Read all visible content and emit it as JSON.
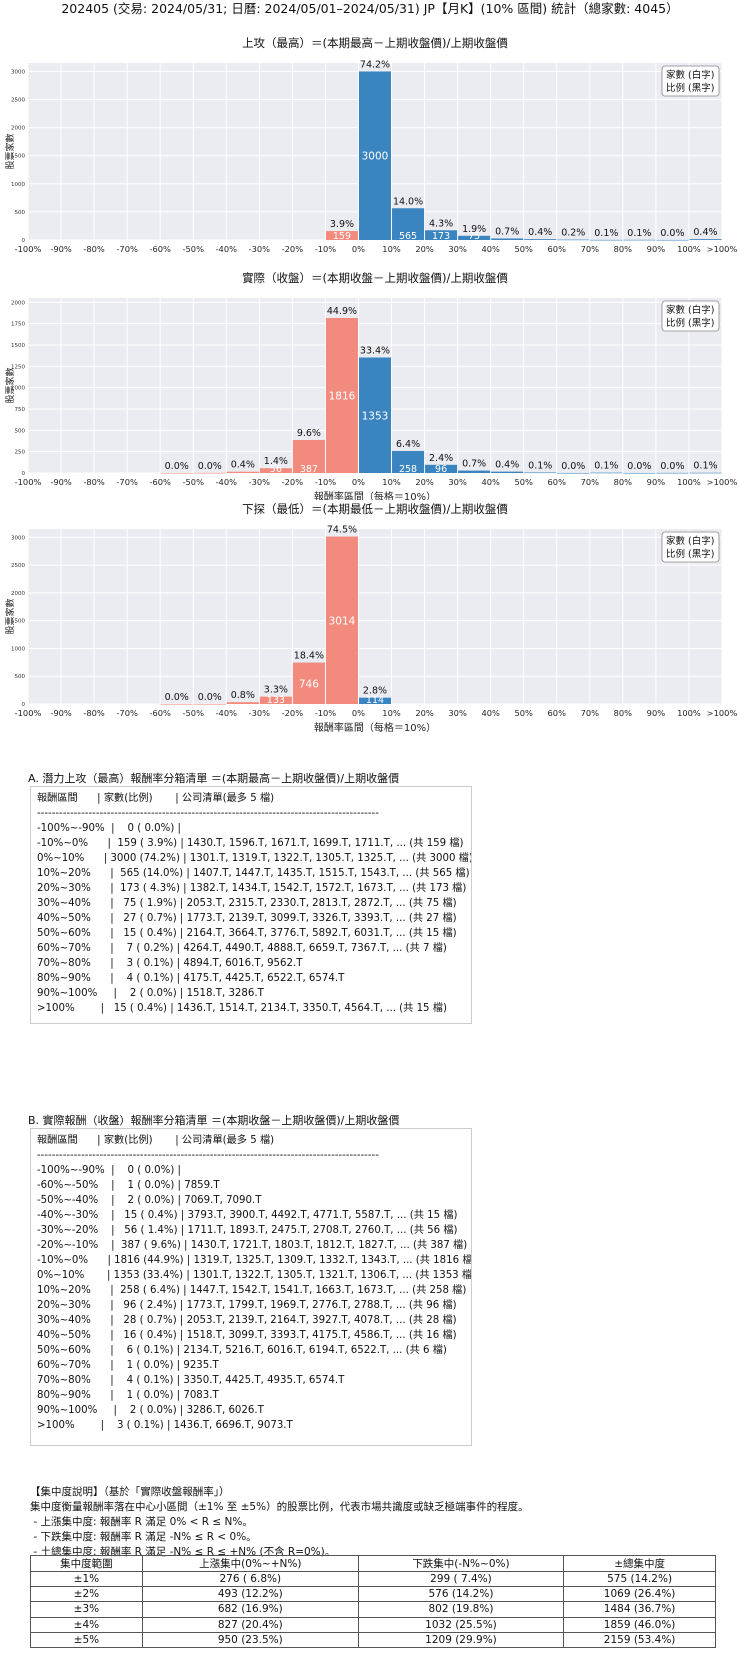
{
  "header": "202405 (交易: 2024/05/31; 日曆: 2024/05/01–2024/05/31) JP【月K】(10% 區間) 統計（總家數: 4045）",
  "legend": [
    "家數 (白字)",
    "比例 (黑字)"
  ],
  "x_tick_labels": [
    "-100%",
    "-90%",
    "-80%",
    "-70%",
    "-60%",
    "-50%",
    "-40%",
    "-30%",
    "-20%",
    "-10%",
    "0%",
    "10%",
    "20%",
    "30%",
    "40%",
    "50%",
    "60%",
    "70%",
    "80%",
    "90%",
    "100%",
    ">100%"
  ],
  "ylabel": "股票家數",
  "xlabel": "報酬率區間（每格＝10%）",
  "chart_data": [
    {
      "type": "bar",
      "title": "上攻（最高）＝(本期最高－上期收盤價)/上期收盤價",
      "ylim": [
        0,
        3150
      ],
      "yticks": [
        0,
        500,
        1000,
        1500,
        2000,
        2500,
        3000
      ],
      "bars": [
        {
          "bin": 9,
          "count": 159,
          "pct": "3.9%",
          "color": "#f28b7d"
        },
        {
          "bin": 10,
          "count": 3000,
          "pct": "74.2%",
          "color": "#3a84c0"
        },
        {
          "bin": 11,
          "count": 565,
          "pct": "14.0%",
          "color": "#3a84c0"
        },
        {
          "bin": 12,
          "count": 173,
          "pct": "4.3%",
          "color": "#3a84c0"
        },
        {
          "bin": 13,
          "count": 75,
          "pct": "1.9%",
          "color": "#3a84c0"
        },
        {
          "bin": 14,
          "count": 27,
          "pct": "0.7%",
          "color": "#3a84c0"
        },
        {
          "bin": 15,
          "count": 15,
          "pct": "0.4%",
          "color": "#3a84c0"
        },
        {
          "bin": 16,
          "count": 7,
          "pct": "0.2%",
          "color": "#3a84c0"
        },
        {
          "bin": 17,
          "count": 3,
          "pct": "0.1%",
          "color": "#3a84c0"
        },
        {
          "bin": 18,
          "count": 4,
          "pct": "0.1%",
          "color": "#3a84c0"
        },
        {
          "bin": 19,
          "count": 2,
          "pct": "0.0%",
          "color": "#3a84c0"
        },
        {
          "bin": 20,
          "count": 15,
          "pct": "0.4%",
          "color": "#3a84c0"
        }
      ]
    },
    {
      "type": "bar",
      "title": "實際（收盤）＝(本期收盤－上期收盤價)/上期收盤價",
      "ylim": [
        0,
        2050
      ],
      "yticks": [
        0,
        250,
        500,
        750,
        1000,
        1250,
        1500,
        1750,
        2000
      ],
      "bars": [
        {
          "bin": 4,
          "count": 1,
          "pct": "0.0%",
          "color": "#f28b7d"
        },
        {
          "bin": 5,
          "count": 2,
          "pct": "0.0%",
          "color": "#f28b7d"
        },
        {
          "bin": 6,
          "count": 15,
          "pct": "0.4%",
          "color": "#f28b7d"
        },
        {
          "bin": 7,
          "count": 56,
          "pct": "1.4%",
          "color": "#f28b7d"
        },
        {
          "bin": 8,
          "count": 387,
          "pct": "9.6%",
          "color": "#f28b7d"
        },
        {
          "bin": 9,
          "count": 1816,
          "pct": "44.9%",
          "color": "#f28b7d"
        },
        {
          "bin": 10,
          "count": 1353,
          "pct": "33.4%",
          "color": "#3a84c0"
        },
        {
          "bin": 11,
          "count": 258,
          "pct": "6.4%",
          "color": "#3a84c0"
        },
        {
          "bin": 12,
          "count": 96,
          "pct": "2.4%",
          "color": "#3a84c0"
        },
        {
          "bin": 13,
          "count": 28,
          "pct": "0.7%",
          "color": "#3a84c0"
        },
        {
          "bin": 14,
          "count": 16,
          "pct": "0.4%",
          "color": "#3a84c0"
        },
        {
          "bin": 15,
          "count": 6,
          "pct": "0.1%",
          "color": "#3a84c0"
        },
        {
          "bin": 16,
          "count": 1,
          "pct": "0.0%",
          "color": "#3a84c0"
        },
        {
          "bin": 17,
          "count": 4,
          "pct": "0.1%",
          "color": "#3a84c0"
        },
        {
          "bin": 18,
          "count": 1,
          "pct": "0.0%",
          "color": "#3a84c0"
        },
        {
          "bin": 19,
          "count": 2,
          "pct": "0.0%",
          "color": "#3a84c0"
        },
        {
          "bin": 20,
          "count": 3,
          "pct": "0.1%",
          "color": "#3a84c0"
        }
      ]
    },
    {
      "type": "bar",
      "title": "下探（最低）＝(本期最低－上期收盤價)/上期收盤價",
      "ylim": [
        0,
        3150
      ],
      "yticks": [
        0,
        500,
        1000,
        1500,
        2000,
        2500,
        3000
      ],
      "bars": [
        {
          "bin": 4,
          "count": 1,
          "pct": "0.0%",
          "color": "#f28b7d"
        },
        {
          "bin": 5,
          "count": 1,
          "pct": "0.0%",
          "color": "#f28b7d"
        },
        {
          "bin": 6,
          "count": 33,
          "pct": "0.8%",
          "color": "#f28b7d"
        },
        {
          "bin": 7,
          "count": 133,
          "pct": "3.3%",
          "color": "#f28b7d"
        },
        {
          "bin": 8,
          "count": 746,
          "pct": "18.4%",
          "color": "#f28b7d"
        },
        {
          "bin": 9,
          "count": 3014,
          "pct": "74.5%",
          "color": "#f28b7d"
        },
        {
          "bin": 10,
          "count": 114,
          "pct": "2.8%",
          "color": "#3a84c0"
        }
      ]
    }
  ],
  "sectionA": {
    "title": "A. 潛力上攻（最高）報酬率分箱清單 ＝(本期最高－上期收盤價)/上期收盤價",
    "lines": [
      "報酬區間      | 家數(比例)       | 公司清單(最多 5 檔)",
      "---------------------------------------------------------------------------------------------",
      "-100%~-90%  |    0 ( 0.0%) |",
      "-10%~0%      |  159 ( 3.9%) | 1430.T, 1596.T, 1671.T, 1699.T, 1711.T, ... (共 159 檔)",
      "0%~10%      | 3000 (74.2%) | 1301.T, 1319.T, 1322.T, 1305.T, 1325.T, ... (共 3000 檔)",
      "10%~20%      |  565 (14.0%) | 1407.T, 1447.T, 1435.T, 1515.T, 1543.T, ... (共 565 檔)",
      "20%~30%      |  173 ( 4.3%) | 1382.T, 1434.T, 1542.T, 1572.T, 1673.T, ... (共 173 檔)",
      "30%~40%      |   75 ( 1.9%) | 2053.T, 2315.T, 2330.T, 2813.T, 2872.T, ... (共 75 檔)",
      "40%~50%      |   27 ( 0.7%) | 1773.T, 2139.T, 3099.T, 3326.T, 3393.T, ... (共 27 檔)",
      "50%~60%      |   15 ( 0.4%) | 2164.T, 3664.T, 3776.T, 5892.T, 6031.T, ... (共 15 檔)",
      "60%~70%      |    7 ( 0.2%) | 4264.T, 4490.T, 4888.T, 6659.T, 7367.T, ... (共 7 檔)",
      "70%~80%      |    3 ( 0.1%) | 4894.T, 6016.T, 9562.T",
      "80%~90%      |    4 ( 0.1%) | 4175.T, 4425.T, 6522.T, 6574.T",
      "90%~100%     |    2 ( 0.0%) | 1518.T, 3286.T",
      ">100%        |   15 ( 0.4%) | 1436.T, 1514.T, 2134.T, 3350.T, 4564.T, ... (共 15 檔)"
    ]
  },
  "sectionB": {
    "title": "B. 實際報酬（收盤）報酬率分箱清單 ＝(本期收盤－上期收盤價)/上期收盤價",
    "lines": [
      "報酬區間      | 家數(比例)       | 公司清單(最多 5 檔)",
      "---------------------------------------------------------------------------------------------",
      "-100%~-90%  |    0 ( 0.0%) |",
      "-60%~-50%    |    1 ( 0.0%) | 7859.T",
      "-50%~-40%    |    2 ( 0.0%) | 7069.T, 7090.T",
      "-40%~-30%    |   15 ( 0.4%) | 3793.T, 3900.T, 4492.T, 4771.T, 5587.T, ... (共 15 檔)",
      "-30%~-20%    |   56 ( 1.4%) | 1711.T, 1893.T, 2475.T, 2708.T, 2760.T, ... (共 56 檔)",
      "-20%~-10%    |  387 ( 9.6%) | 1430.T, 1721.T, 1803.T, 1812.T, 1827.T, ... (共 387 檔)",
      "-10%~0%      | 1816 (44.9%) | 1319.T, 1325.T, 1309.T, 1332.T, 1343.T, ... (共 1816 檔)",
      "0%~10%       | 1353 (33.4%) | 1301.T, 1322.T, 1305.T, 1321.T, 1306.T, ... (共 1353 檔)",
      "10%~20%      |  258 ( 6.4%) | 1447.T, 1542.T, 1541.T, 1663.T, 1673.T, ... (共 258 檔)",
      "20%~30%      |   96 ( 2.4%) | 1773.T, 1799.T, 1969.T, 2776.T, 2788.T, ... (共 96 檔)",
      "30%~40%      |   28 ( 0.7%) | 2053.T, 2139.T, 2164.T, 3927.T, 4078.T, ... (共 28 檔)",
      "40%~50%      |   16 ( 0.4%) | 1518.T, 3099.T, 3393.T, 4175.T, 4586.T, ... (共 16 檔)",
      "50%~60%      |    6 ( 0.1%) | 2134.T, 5216.T, 6016.T, 6194.T, 6522.T, ... (共 6 檔)",
      "60%~70%      |    1 ( 0.0%) | 9235.T",
      "70%~80%      |    4 ( 0.1%) | 3350.T, 4425.T, 4935.T, 6574.T",
      "80%~90%      |    1 ( 0.0%) | 7083.T",
      "90%~100%     |    2 ( 0.0%) | 3286.T, 6026.T",
      ">100%        |    3 ( 0.1%) | 1436.T, 6696.T, 9073.T"
    ]
  },
  "notes": [
    "【集中度說明】（基於「實際收盤報酬率」）",
    "集中度衡量報酬率落在中心小區間（±1% 至 ±5%）的股票比例，代表市場共識度或缺乏極端事件的程度。",
    " - 上漲集中度: 報酬率 R 滿足 0% < R ≤ N%。",
    " - 下跌集中度: 報酬率 R 滿足 -N% ≤ R < 0%。",
    " - 土總集中度: 報酬率 R 滿足 -N% ≤ R ≤ +N% (不含 R=0%)。"
  ],
  "concentration": {
    "headers": [
      "集中度範圍",
      "上漲集中(0%~+N%)",
      "下跌集中(-N%~0%)",
      "±總集中度"
    ],
    "rows": [
      [
        "±1%",
        "276 ( 6.8%)",
        "299 ( 7.4%)",
        "575 (14.2%)"
      ],
      [
        "±2%",
        "493 (12.2%)",
        "576 (14.2%)",
        "1069 (26.4%)"
      ],
      [
        "±3%",
        "682 (16.9%)",
        "802 (19.8%)",
        "1484 (36.7%)"
      ],
      [
        "±4%",
        "827 (20.4%)",
        "1032 (25.5%)",
        "1859 (46.0%)"
      ],
      [
        "±5%",
        "950 (23.5%)",
        "1209 (29.9%)",
        "2159 (53.4%)"
      ]
    ]
  }
}
